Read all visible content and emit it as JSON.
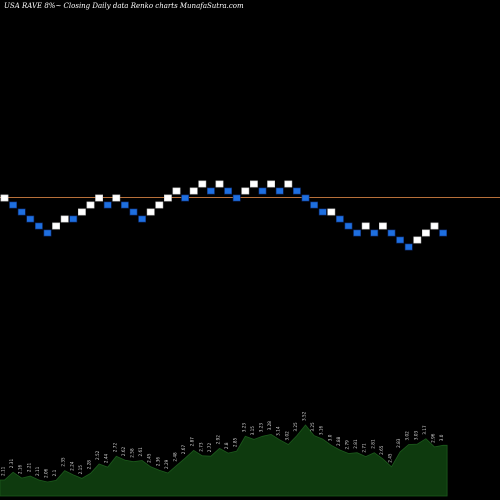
{
  "title": "USA RAVE 8%~  Closing Daily data  Renko  charts MunafaSutra.com",
  "colors": {
    "background": "#000000",
    "up_brick": "#ffffff",
    "down_brick": "#1e6fe0",
    "brick_outline": "#0d2a6a",
    "reference_line": "#b8703a",
    "volume_fill": "#0e3a0e",
    "volume_line": "#1c5a1c",
    "label_text": "#d8d8d8"
  },
  "chart_data": [
    {
      "type": "renko",
      "title": "USA RAVE 8%~  Closing Daily data  Renko  charts MunafaSutra.com",
      "reference_level": 7,
      "bricks": [
        {
          "level": 7,
          "dir": "up"
        },
        {
          "level": 6,
          "dir": "down"
        },
        {
          "level": 5,
          "dir": "down"
        },
        {
          "level": 4,
          "dir": "down"
        },
        {
          "level": 3,
          "dir": "down"
        },
        {
          "level": 2,
          "dir": "down"
        },
        {
          "level": 3,
          "dir": "up"
        },
        {
          "level": 4,
          "dir": "up"
        },
        {
          "level": 4,
          "dir": "down"
        },
        {
          "level": 5,
          "dir": "up"
        },
        {
          "level": 6,
          "dir": "up"
        },
        {
          "level": 7,
          "dir": "up"
        },
        {
          "level": 6,
          "dir": "down"
        },
        {
          "level": 7,
          "dir": "up"
        },
        {
          "level": 6,
          "dir": "down"
        },
        {
          "level": 5,
          "dir": "down"
        },
        {
          "level": 4,
          "dir": "down"
        },
        {
          "level": 5,
          "dir": "up"
        },
        {
          "level": 6,
          "dir": "up"
        },
        {
          "level": 7,
          "dir": "up"
        },
        {
          "level": 8,
          "dir": "up"
        },
        {
          "level": 7,
          "dir": "down"
        },
        {
          "level": 8,
          "dir": "up"
        },
        {
          "level": 9,
          "dir": "up"
        },
        {
          "level": 8,
          "dir": "down"
        },
        {
          "level": 9,
          "dir": "up"
        },
        {
          "level": 8,
          "dir": "down"
        },
        {
          "level": 7,
          "dir": "down"
        },
        {
          "level": 8,
          "dir": "up"
        },
        {
          "level": 9,
          "dir": "up"
        },
        {
          "level": 8,
          "dir": "down"
        },
        {
          "level": 9,
          "dir": "up"
        },
        {
          "level": 8,
          "dir": "down"
        },
        {
          "level": 9,
          "dir": "up"
        },
        {
          "level": 8,
          "dir": "down"
        },
        {
          "level": 7,
          "dir": "down"
        },
        {
          "level": 6,
          "dir": "down"
        },
        {
          "level": 5,
          "dir": "down"
        },
        {
          "level": 5,
          "dir": "up"
        },
        {
          "level": 4,
          "dir": "down"
        },
        {
          "level": 3,
          "dir": "down"
        },
        {
          "level": 2,
          "dir": "down"
        },
        {
          "level": 3,
          "dir": "up"
        },
        {
          "level": 2,
          "dir": "down"
        },
        {
          "level": 3,
          "dir": "up"
        },
        {
          "level": 2,
          "dir": "down"
        },
        {
          "level": 1,
          "dir": "down"
        },
        {
          "level": 0,
          "dir": "down"
        },
        {
          "level": 1,
          "dir": "up"
        },
        {
          "level": 2,
          "dir": "up"
        },
        {
          "level": 3,
          "dir": "up"
        },
        {
          "level": 2,
          "dir": "down"
        }
      ]
    },
    {
      "type": "area",
      "series_label_values": [
        "2.11",
        "2.31",
        "2.16",
        "2.21",
        "2.11",
        "2.06",
        "2.1",
        "2.35",
        "2.24",
        "2.15",
        "2.28",
        "2.52",
        "2.44",
        "2.72",
        "2.62",
        "2.58",
        "2.61",
        "2.45",
        "2.36",
        "2.29",
        "2.48",
        "2.67",
        "2.87",
        "2.73",
        "2.72",
        "2.92",
        "2.8",
        "2.85",
        "3.23",
        "3.15",
        "3.23",
        "3.28",
        "3.14",
        "3.02",
        "3.25",
        "3.52",
        "3.25",
        "3.16",
        "3.0",
        "2.88",
        "2.79",
        "2.81",
        "2.71",
        "2.81",
        "2.65",
        "2.45",
        "2.83",
        "3.02",
        "3.03",
        "3.17",
        "2.96",
        "3.0"
      ],
      "tick_labels": [
        "2.11",
        "2.31",
        "2.16",
        "2.21",
        "2.11",
        "2.06",
        "2.1",
        "2.35",
        "2.24",
        "2.15",
        "2.28",
        "2.52",
        "2.44",
        "2.72",
        "2.62",
        "2.58",
        "2.61",
        "2.45",
        "2.36",
        "2.29",
        "2.48",
        "2.67",
        "2.87",
        "2.73",
        "2.72",
        "2.92",
        "2.8",
        "2.85",
        "3.23",
        "3.15",
        "3.23",
        "3.28",
        "3.14",
        "3.02",
        "3.25",
        "3.52",
        "3.25",
        "3.16",
        "3.0",
        "2.88",
        "2.79",
        "2.81",
        "2.71",
        "2.81",
        "2.65",
        "2.45",
        "2.83",
        "3.02",
        "3.03",
        "3.17",
        "2.96",
        "3.0"
      ],
      "values": [
        2.11,
        2.31,
        2.16,
        2.21,
        2.11,
        2.06,
        2.1,
        2.35,
        2.24,
        2.15,
        2.28,
        2.52,
        2.44,
        2.72,
        2.62,
        2.58,
        2.61,
        2.45,
        2.36,
        2.29,
        2.48,
        2.67,
        2.87,
        2.73,
        2.72,
        2.92,
        2.8,
        2.85,
        3.23,
        3.15,
        3.23,
        3.28,
        3.14,
        3.02,
        3.25,
        3.52,
        3.25,
        3.16,
        3.0,
        2.88,
        2.79,
        2.81,
        2.71,
        2.81,
        2.65,
        2.45,
        2.83,
        3.02,
        3.03,
        3.17,
        2.96,
        3.0
      ],
      "ylim": [
        1.7,
        3.7
      ]
    }
  ]
}
